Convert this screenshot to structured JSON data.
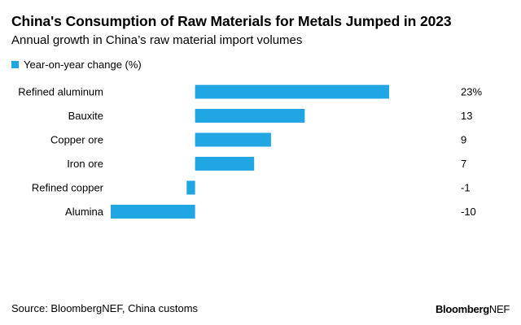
{
  "title": "China's Consumption of Raw Materials for Metals Jumped in 2023",
  "subtitle": "Annual growth in China’s raw material import volumes",
  "source": "Source: BloombergNEF, China customs",
  "brand": {
    "bold": "Bloomberg",
    "regular": "NEF"
  },
  "colors": {
    "bar": "#1fa6e3"
  },
  "chart_data": {
    "type": "bar",
    "orientation": "horizontal",
    "title": "China's Consumption of Raw Materials for Metals Jumped in 2023",
    "subtitle": "Annual growth in China’s raw material import volumes",
    "legend": {
      "position": "top-left",
      "entries": [
        "Year-on-year change (%)"
      ]
    },
    "categories": [
      "Refined aluminum",
      "Bauxite",
      "Copper ore",
      "Iron ore",
      "Refined copper",
      "Alumina"
    ],
    "series": [
      {
        "name": "Year-on-year change (%)",
        "values": [
          23,
          13,
          9,
          7,
          -1,
          -10
        ]
      }
    ],
    "value_labels": [
      "23%",
      "13",
      "9",
      "7",
      "-1",
      "-10"
    ],
    "xlim": [
      -10,
      23
    ],
    "grid": false
  }
}
